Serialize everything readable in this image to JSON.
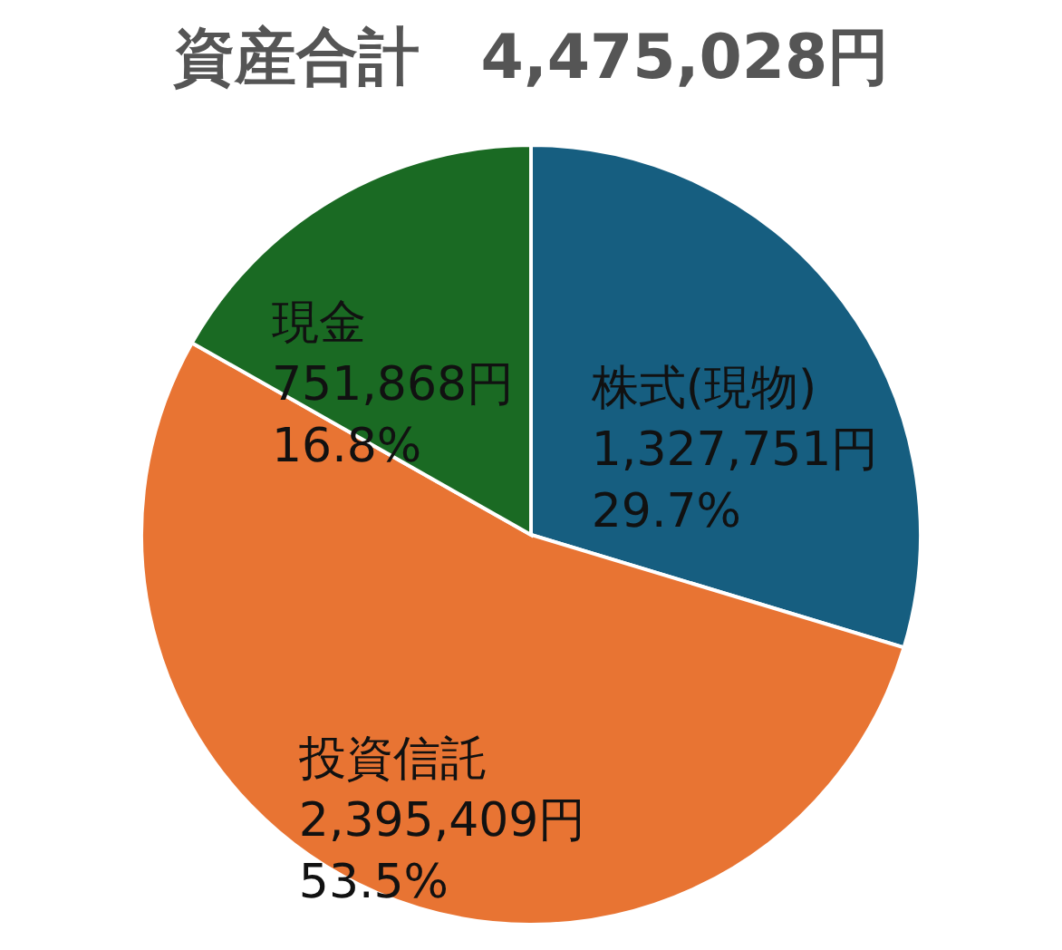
{
  "chart_data": {
    "type": "pie",
    "title": "資産合計　4,475,028円",
    "categories": [
      "株式(現物)",
      "投資信託",
      "現金"
    ],
    "values": [
      1327751,
      2395409,
      751868
    ],
    "colors": [
      "#165e80",
      "#e87433",
      "#1a6a23"
    ],
    "value_labels": [
      "1,327,751円\n29.7%",
      "2,395,409円\n53.5%",
      "751,868円\n16.8%"
    ],
    "legend": false
  }
}
